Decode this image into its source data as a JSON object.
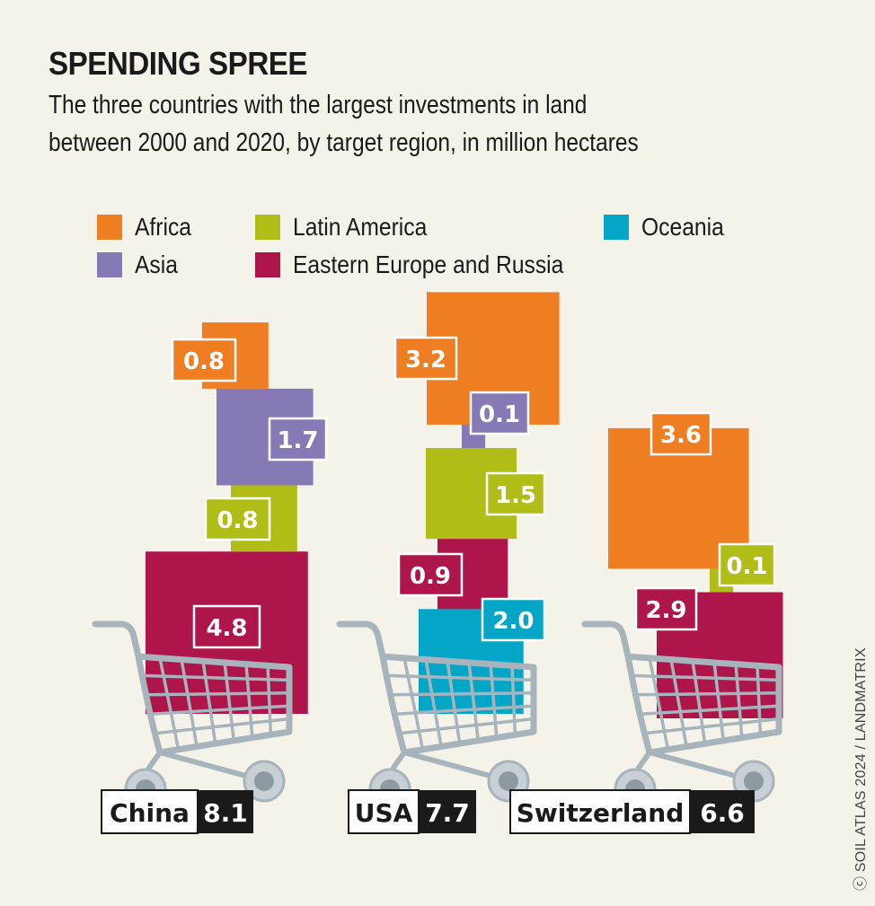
{
  "title": "SPENDING SPREE",
  "subtitle_line1": "The three countries with the largest investments in land",
  "subtitle_line2": "between 2000 and 2020, by target region, in million hectares",
  "credit": "ⓒ SOIL ATLAS 2024 / LANDMATRIX",
  "legend": [
    {
      "label": "Africa",
      "color": "#ef7d22"
    },
    {
      "label": "Latin America",
      "color": "#afbd16"
    },
    {
      "label": "Oceania",
      "color": "#03a6c7"
    },
    {
      "label": "Asia",
      "color": "#8778b6"
    },
    {
      "label": "Eastern Europe and Russia",
      "color": "#ad154b"
    }
  ],
  "chart_data": {
    "type": "stacked-area-squares",
    "title": "SPENDING SPREE",
    "subtitle": "The three countries with the largest investments in land between 2000 and 2020, by target region, in million hectares",
    "unit": "million hectares",
    "regions": [
      "Africa",
      "Asia",
      "Latin America",
      "Eastern Europe and Russia",
      "Oceania"
    ],
    "series": [
      {
        "country": "China",
        "total": "8.1",
        "values": {
          "Africa": 0.8,
          "Asia": 1.7,
          "Latin America": 0.8,
          "Eastern Europe and Russia": 4.8
        }
      },
      {
        "country": "USA",
        "total": "7.7",
        "values": {
          "Africa": 3.2,
          "Asia": 0.1,
          "Latin America": 1.5,
          "Eastern Europe and Russia": 0.9,
          "Oceania": 2.0
        }
      },
      {
        "country": "Switzerland",
        "total": "6.6",
        "values": {
          "Africa": 3.6,
          "Latin America": 0.1,
          "Eastern Europe and Russia": 2.9
        }
      }
    ],
    "legend_placement": "top"
  },
  "colors": {
    "Africa": "#ef7d22",
    "Asia": "#8778b6",
    "Latin America": "#afbd16",
    "Eastern Europe and Russia": "#ad154b",
    "Oceania": "#03a6c7",
    "cart": "#a8b4bb",
    "cart_wheel_inner": "#8e9aa1"
  }
}
